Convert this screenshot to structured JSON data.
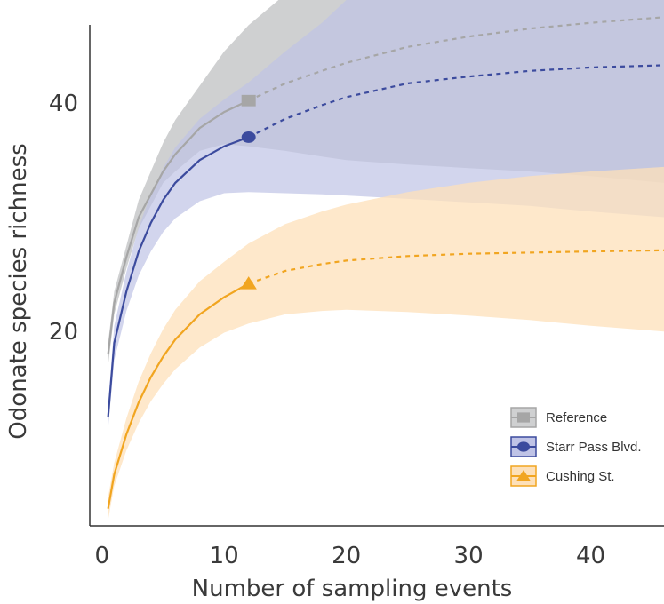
{
  "chart_data": {
    "type": "line",
    "title": "",
    "xlabel": "Number of sampling events",
    "ylabel": "Odonate species richness",
    "xlim": [
      -1,
      46
    ],
    "ylim": [
      3,
      49
    ],
    "xticks": [
      0,
      10,
      20,
      30,
      40
    ],
    "yticks": [
      20,
      40
    ],
    "grid": false,
    "legend_position": "bottom-right",
    "series": [
      {
        "name": "Reference",
        "marker": "square",
        "color": "#a6a6a6",
        "band_color": "#cfd0d1",
        "observed_n": 12,
        "observed_richness": 40.2,
        "x": [
          0.5,
          1,
          2,
          3,
          4,
          5,
          6,
          8,
          10,
          12,
          15,
          18,
          20,
          25,
          30,
          35,
          40,
          46
        ],
        "y": [
          18,
          22.5,
          26.5,
          30,
          32,
          34,
          35.5,
          37.8,
          39.2,
          40.2,
          41.7,
          42.8,
          43.5,
          44.9,
          45.8,
          46.5,
          47.0,
          47.5
        ],
        "lower": [
          17,
          21.5,
          25.5,
          29,
          31,
          33,
          34,
          35.8,
          36.4,
          36.2,
          35.8,
          35.3,
          35.0,
          34.6,
          34.3,
          34.0,
          33.6,
          33.0
        ],
        "upper": [
          19,
          23.5,
          27.5,
          31.5,
          34,
          36.5,
          38.5,
          41.5,
          44.5,
          46.8,
          49.5,
          52,
          53.5,
          55,
          56,
          56,
          56,
          56
        ]
      },
      {
        "name": "Starr Pass Blvd.",
        "marker": "circle",
        "color": "#3c4b9e",
        "band_color": "#bfc3e6",
        "observed_n": 12,
        "observed_richness": 37.0,
        "x": [
          0.5,
          1,
          2,
          3,
          4,
          5,
          6,
          8,
          10,
          12,
          15,
          18,
          20,
          25,
          30,
          35,
          40,
          46
        ],
        "y": [
          12.5,
          19,
          23.5,
          27,
          29.5,
          31.5,
          33,
          35,
          36.2,
          37.0,
          38.6,
          39.8,
          40.5,
          41.7,
          42.3,
          42.8,
          43.1,
          43.3
        ],
        "lower": [
          11.5,
          17.5,
          21.8,
          24.9,
          27.0,
          28.7,
          29.9,
          31.4,
          32.1,
          32.2,
          32.1,
          32.0,
          31.9,
          31.6,
          31.3,
          31.0,
          30.5,
          30.0
        ],
        "upper": [
          13.5,
          20.5,
          25.2,
          29.1,
          32.0,
          34.3,
          36.1,
          38.6,
          40.3,
          41.8,
          44.5,
          47,
          49,
          52,
          54,
          55,
          56,
          56
        ]
      },
      {
        "name": "Cushing St.",
        "marker": "triangle",
        "color": "#f1a520",
        "band_color": "#fde0b9",
        "observed_n": 12,
        "observed_richness": 24.2,
        "x": [
          0.5,
          1,
          2,
          3,
          4,
          5,
          6,
          8,
          10,
          12,
          15,
          18,
          20,
          25,
          30,
          35,
          40,
          46
        ],
        "y": [
          4.5,
          7.5,
          11,
          13.8,
          16,
          17.8,
          19.3,
          21.5,
          23,
          24.2,
          25.3,
          25.9,
          26.2,
          26.6,
          26.8,
          26.9,
          27.0,
          27.1
        ],
        "lower": [
          3.5,
          6.5,
          9.6,
          12.0,
          13.9,
          15.4,
          16.7,
          18.6,
          19.9,
          20.7,
          21.5,
          21.8,
          21.9,
          21.7,
          21.4,
          21.0,
          20.5,
          20.0
        ],
        "upper": [
          5.5,
          8.5,
          12.4,
          15.6,
          18.1,
          20.2,
          21.9,
          24.4,
          26.1,
          27.7,
          29.4,
          30.5,
          31.1,
          32.2,
          33.0,
          33.6,
          34.0,
          34.4
        ]
      }
    ]
  }
}
